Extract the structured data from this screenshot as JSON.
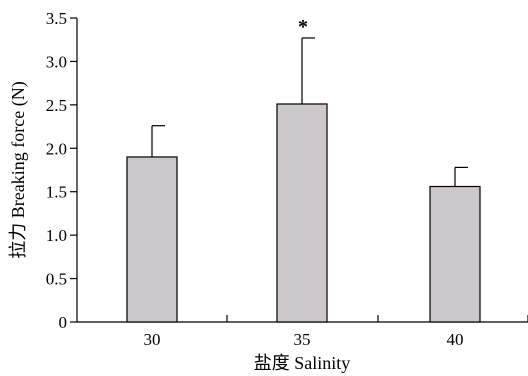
{
  "chart_data": {
    "type": "bar",
    "categories": [
      "30",
      "35",
      "40"
    ],
    "values": [
      1.9,
      2.51,
      1.56
    ],
    "errors": [
      0.36,
      0.76,
      0.22
    ],
    "annotations": [
      "",
      "*",
      ""
    ],
    "y_ticks": [
      "0",
      "0.5",
      "1.0",
      "1.5",
      "2.0",
      "2.5",
      "3.0",
      "3.5"
    ],
    "ylim": [
      0,
      3.5
    ],
    "xlabel": "盐度 Salinity",
    "ylabel": "拉力 Breaking force (N)",
    "bar_color": "#cdc8cc",
    "grid": false
  }
}
